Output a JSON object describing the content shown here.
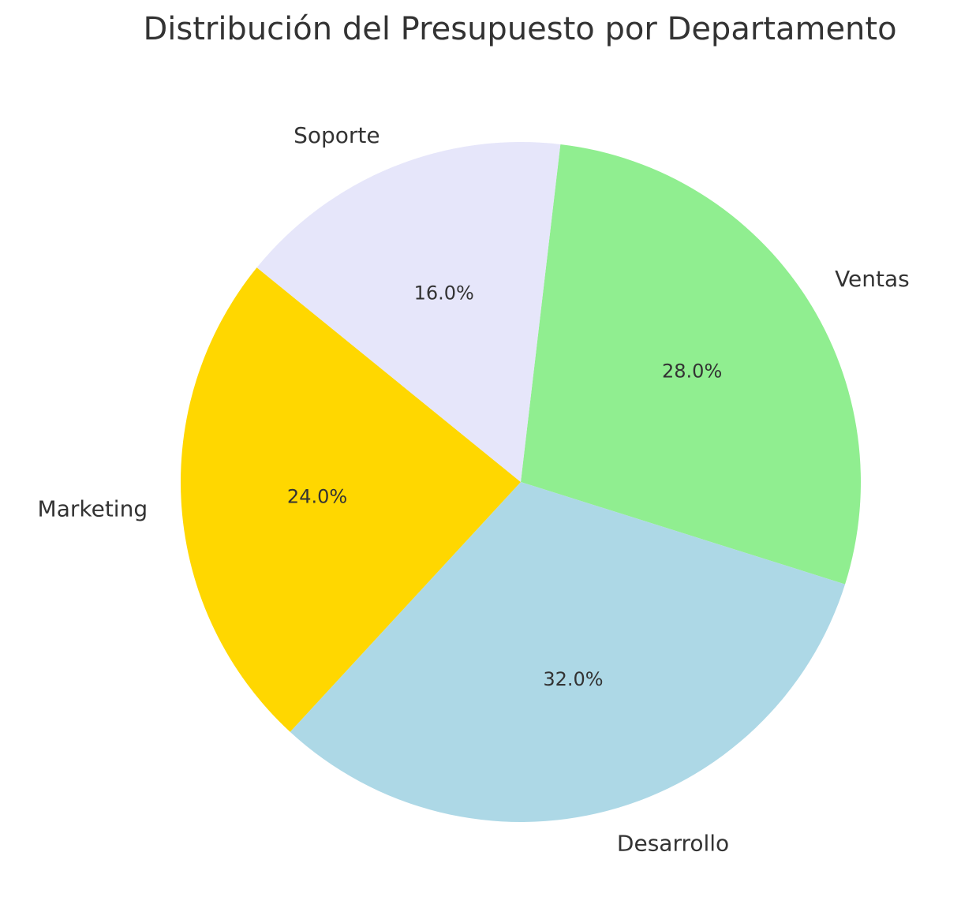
{
  "chart_data": {
    "type": "pie",
    "title": "Distribución del Presupuesto por Departamento",
    "categories": [
      "Ventas",
      "Desarrollo",
      "Marketing",
      "Soporte"
    ],
    "values": [
      28.0,
      32.0,
      24.0,
      16.0
    ],
    "percent_labels": [
      "28.0%",
      "32.0%",
      "24.0%",
      "16.0%"
    ],
    "colors": [
      "#90EE90",
      "#ADD8E6",
      "#FFD700",
      "#E6E6FA"
    ],
    "legend": "none"
  }
}
